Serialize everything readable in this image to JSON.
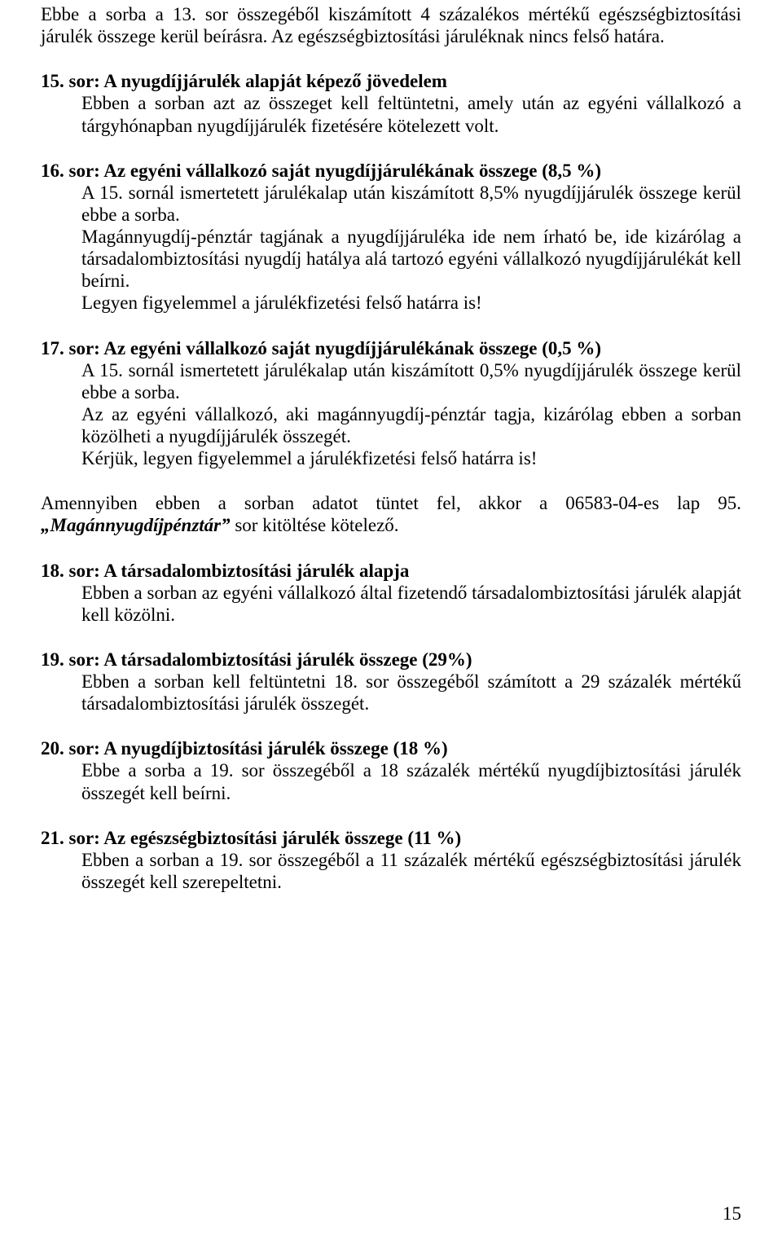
{
  "intro": {
    "p1": "Ebbe a sorba a 13. sor összegéből kiszámított 4 százalékos mértékű egészségbiztosítási járulék összege kerül beírásra. Az egészségbiztosítási járuléknak nincs felső határa."
  },
  "s15": {
    "heading": "15. sor: A nyugdíjjárulék alapját képező jövedelem",
    "p1": "Ebben a sorban azt az összeget kell feltüntetni, amely után az egyéni vállalkozó a tárgyhónapban nyugdíjjárulék fizetésére kötelezett volt."
  },
  "s16": {
    "heading": "16. sor: Az egyéni vállalkozó saját nyugdíjjárulékának összege (8,5 %)",
    "p1": "A 15. sornál ismertetett járulékalap után kiszámított 8,5% nyugdíjjárulék összege kerül ebbe a sorba.",
    "p2": "Magánnyugdíj-pénztár tagjának a nyugdíjjáruléka ide nem írható be, ide kizárólag a társadalombiztosítási nyugdíj hatálya alá tartozó egyéni vállalkozó nyugdíjjárulékát kell beírni.",
    "p3": "Legyen figyelemmel a járulékfizetési felső határra is!"
  },
  "s17": {
    "heading": "17. sor: Az egyéni vállalkozó saját nyugdíjjárulékának összege (0,5 %)",
    "p1": "A 15. sornál ismertetett járulékalap után kiszámított 0,5% nyugdíjjárulék összege kerül ebbe a sorba.",
    "p2": "Az az egyéni vállalkozó, aki magánnyugdíj-pénztár tagja, kizárólag ebben a sorban közölheti a nyugdíjjárulék összegét.",
    "p3": "Kérjük, legyen figyelemmel a járulékfizetési felső határra is!"
  },
  "note": {
    "prefix": "Amennyiben ebben a sorban adatot tüntet fel, akkor a 06583-04-es lap 95. ",
    "emph": "„Magánnyugdíjpénztár”",
    "suffix": " sor kitöltése kötelező."
  },
  "s18": {
    "heading": "18. sor: A társadalombiztosítási járulék alapja",
    "p1": "Ebben a sorban az egyéni vállalkozó által fizetendő társadalombiztosítási járulék alapját kell közölni."
  },
  "s19": {
    "heading": "19. sor: A társadalombiztosítási járulék összege (29%)",
    "p1": "Ebben a sorban kell feltüntetni 18. sor összegéből számított a 29 százalék mértékű társadalombiztosítási járulék összegét."
  },
  "s20": {
    "heading": "20. sor:  A nyugdíjbiztosítási járulék összege (18 %)",
    "p1": "Ebbe a sorba a 19. sor összegéből a 18 százalék mértékű nyugdíjbiztosítási járulék összegét kell beírni."
  },
  "s21": {
    "heading": "21. sor: Az egészségbiztosítási járulék összege (11 %)",
    "p1": "Ebben a sorban a 19. sor összegéből a 11 százalék mértékű egészségbiztosítási járulék összegét kell szerepeltetni."
  },
  "pagenum": "15"
}
